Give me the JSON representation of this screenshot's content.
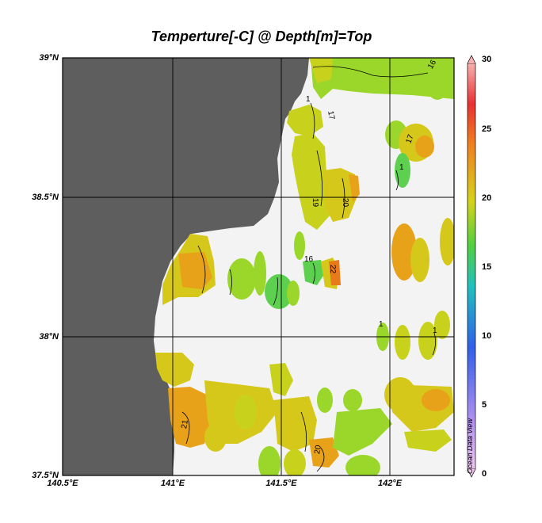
{
  "title": "Temperture[-C] @ Depth[m]=Top",
  "watermark": "Ocean Data View",
  "lat_ticks": [
    "39°N",
    "38.5°N",
    "38°N",
    "37.5°N"
  ],
  "lon_ticks": [
    "140.5°E",
    "141°E",
    "141.5°E",
    "142°E"
  ],
  "colorbar": {
    "min": 0,
    "max": 30,
    "ticks": [
      "30",
      "25",
      "20",
      "15",
      "10",
      "5",
      "0"
    ]
  },
  "contour_labels": [
    "16",
    "17",
    "19",
    "20",
    "16",
    "22",
    "17",
    "21",
    "20",
    "1",
    "1",
    "1",
    "1"
  ],
  "colors": {
    "land": "#5e5e5e",
    "no_data": "#f3f3f3",
    "green": "#9bd62a",
    "yellow": "#d6c81a",
    "orange": "#e89a1a"
  }
}
